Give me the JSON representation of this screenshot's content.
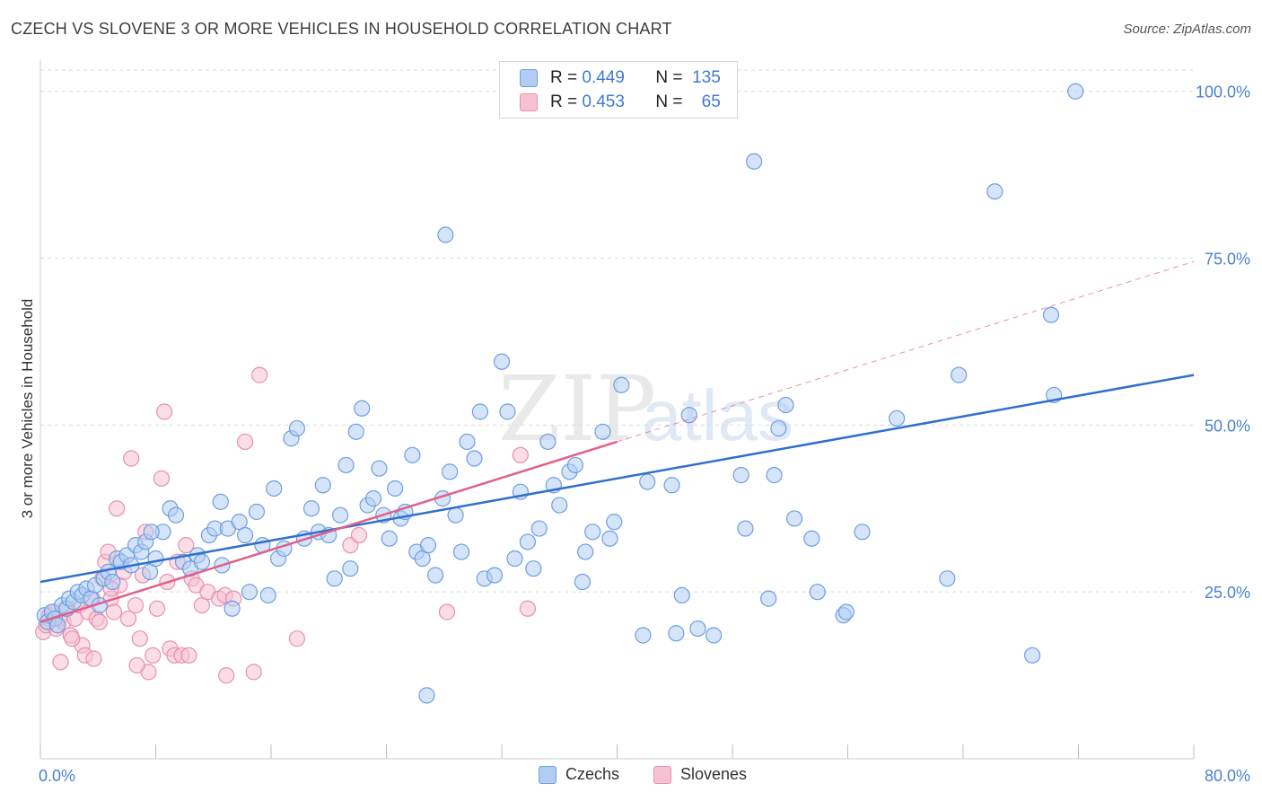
{
  "header": {
    "title": "CZECH VS SLOVENE 3 OR MORE VEHICLES IN HOUSEHOLD CORRELATION CHART",
    "source": "Source: ZipAtlas.com"
  },
  "legend": {
    "czechs": {
      "r_label": "R =",
      "r_value": "0.449",
      "n_label": "N =",
      "n_value": "135"
    },
    "slovenes": {
      "r_label": "R =",
      "r_value": "0.453",
      "n_label": "N =",
      "n_value": "65"
    }
  },
  "watermark": {
    "zip": "ZIP",
    "atlas": "atlas"
  },
  "colors": {
    "czech_fill": "#b3cdf2",
    "czech_stroke": "#6d9fe0",
    "czech_line": "#2f6fd0",
    "slovene_fill": "#f8c1d3",
    "slovene_stroke": "#e88fae",
    "slovene_line": "#e0608a",
    "grid": "#d9d9d9",
    "tick_text": "#4a7fd4"
  },
  "chart_data": {
    "type": "scatter",
    "title": "CZECH VS SLOVENE 3 OR MORE VEHICLES IN HOUSEHOLD CORRELATION CHART",
    "xlabel": "",
    "ylabel": "3 or more Vehicles in Household",
    "xlim": [
      0,
      80
    ],
    "ylim": [
      0,
      104
    ],
    "x_tick_labels": [
      "0.0%",
      "80.0%"
    ],
    "y_ticks": [
      25,
      50,
      75,
      100
    ],
    "y_tick_labels": [
      "25.0%",
      "50.0%",
      "75.0%",
      "100.0%"
    ],
    "grid": true,
    "legend_position": "top-center and bottom",
    "series": [
      {
        "name": "Czechs",
        "trend": {
          "x0": 0,
          "y0": 26.5,
          "x1": 80,
          "y1": 57.5
        },
        "points": [
          [
            0.3,
            21.5
          ],
          [
            0.5,
            20.5
          ],
          [
            0.8,
            22
          ],
          [
            1,
            21
          ],
          [
            1.2,
            20
          ],
          [
            1.5,
            23
          ],
          [
            1.8,
            22.5
          ],
          [
            2,
            24
          ],
          [
            2.3,
            23.5
          ],
          [
            2.6,
            25
          ],
          [
            2.9,
            24.5
          ],
          [
            3.2,
            25.5
          ],
          [
            3.5,
            24
          ],
          [
            3.8,
            26
          ],
          [
            4.1,
            23
          ],
          [
            4.4,
            27
          ],
          [
            4.7,
            28
          ],
          [
            5,
            26.5
          ],
          [
            5.3,
            30
          ],
          [
            5.6,
            29.5
          ],
          [
            6,
            30.5
          ],
          [
            6.3,
            29
          ],
          [
            6.6,
            32
          ],
          [
            7,
            31
          ],
          [
            7.3,
            32.5
          ],
          [
            7.6,
            28
          ],
          [
            8,
            30
          ],
          [
            8.5,
            34
          ],
          [
            9,
            37.5
          ],
          [
            9.4,
            36.5
          ],
          [
            9.9,
            29.5
          ],
          [
            10.4,
            28.5
          ],
          [
            10.9,
            30.5
          ],
          [
            11.2,
            29.5
          ],
          [
            11.7,
            33.5
          ],
          [
            12.1,
            34.5
          ],
          [
            12.6,
            29
          ],
          [
            13,
            34.5
          ],
          [
            13.3,
            22.5
          ],
          [
            13.8,
            35.5
          ],
          [
            14.2,
            33.5
          ],
          [
            14.5,
            25
          ],
          [
            15,
            37
          ],
          [
            15.4,
            32
          ],
          [
            15.8,
            24.5
          ],
          [
            16.2,
            40.5
          ],
          [
            16.5,
            30
          ],
          [
            16.9,
            31.5
          ],
          [
            17.4,
            48
          ],
          [
            17.8,
            49.5
          ],
          [
            18.3,
            33
          ],
          [
            18.8,
            37.5
          ],
          [
            19.3,
            34
          ],
          [
            19.6,
            41
          ],
          [
            20,
            33.5
          ],
          [
            20.4,
            27
          ],
          [
            20.8,
            36.5
          ],
          [
            21.2,
            44
          ],
          [
            21.5,
            28.5
          ],
          [
            21.9,
            49
          ],
          [
            22.3,
            52.5
          ],
          [
            22.7,
            38
          ],
          [
            23.1,
            39
          ],
          [
            23.5,
            43.5
          ],
          [
            23.8,
            36.5
          ],
          [
            24.2,
            33
          ],
          [
            24.6,
            40.5
          ],
          [
            25,
            36
          ],
          [
            25.3,
            37
          ],
          [
            25.8,
            45.5
          ],
          [
            26.1,
            31
          ],
          [
            26.5,
            30
          ],
          [
            26.9,
            32
          ],
          [
            27.4,
            27.5
          ],
          [
            27.9,
            39
          ],
          [
            28.4,
            43
          ],
          [
            28.8,
            36.5
          ],
          [
            29.2,
            31
          ],
          [
            29.6,
            47.5
          ],
          [
            30.1,
            45
          ],
          [
            26.8,
            9.5
          ],
          [
            30.5,
            52
          ],
          [
            30.8,
            27
          ],
          [
            31.5,
            27.5
          ],
          [
            32,
            59.5
          ],
          [
            32.4,
            52
          ],
          [
            32.9,
            30
          ],
          [
            33.3,
            40
          ],
          [
            33.8,
            32.5
          ],
          [
            34.2,
            28.5
          ],
          [
            34.6,
            34.5
          ],
          [
            35.2,
            47.5
          ],
          [
            35.6,
            41
          ],
          [
            36,
            38
          ],
          [
            36.7,
            43
          ],
          [
            37.1,
            44
          ],
          [
            37.6,
            26.5
          ],
          [
            37.8,
            31
          ],
          [
            38.3,
            34
          ],
          [
            39,
            49
          ],
          [
            39.5,
            33
          ],
          [
            39.8,
            35.5
          ],
          [
            40.3,
            56
          ],
          [
            41.8,
            18.5
          ],
          [
            42.1,
            41.5
          ],
          [
            43.8,
            41
          ],
          [
            44.1,
            18.8
          ],
          [
            44.5,
            24.5
          ],
          [
            45,
            51.5
          ],
          [
            45.6,
            19.5
          ],
          [
            46.7,
            18.5
          ],
          [
            48.6,
            42.5
          ],
          [
            48.9,
            34.5
          ],
          [
            49.5,
            89.5
          ],
          [
            50.5,
            24
          ],
          [
            50.9,
            42.5
          ],
          [
            51.2,
            49.5
          ],
          [
            51.7,
            53
          ],
          [
            52.3,
            36
          ],
          [
            53.9,
            25
          ],
          [
            53.5,
            33
          ],
          [
            55.7,
            21.5
          ],
          [
            55.9,
            22
          ],
          [
            57,
            34
          ],
          [
            59.4,
            51
          ],
          [
            62.9,
            27
          ],
          [
            63.7,
            57.5
          ],
          [
            66.2,
            85
          ],
          [
            68.8,
            15.5
          ],
          [
            70.1,
            66.5
          ],
          [
            70.3,
            54.5
          ],
          [
            71.8,
            100
          ],
          [
            28.1,
            78.5
          ],
          [
            7.7,
            34
          ],
          [
            12.5,
            38.5
          ]
        ]
      },
      {
        "name": "Slovenes",
        "trend": {
          "x0": 0,
          "y0": 20.5,
          "x1": 40,
          "y1": 47.5,
          "dash_x1": 80,
          "dash_y1": 74.5
        },
        "points": [
          [
            0.2,
            19
          ],
          [
            0.4,
            20
          ],
          [
            0.6,
            21.5
          ],
          [
            0.9,
            22
          ],
          [
            1.1,
            19.5
          ],
          [
            1.3,
            21
          ],
          [
            1.6,
            20.5
          ],
          [
            1.9,
            22.5
          ],
          [
            2.1,
            18.5
          ],
          [
            2.4,
            21
          ],
          [
            2.7,
            23
          ],
          [
            2.9,
            17
          ],
          [
            3.1,
            15.5
          ],
          [
            3.3,
            22
          ],
          [
            3.6,
            24
          ],
          [
            3.9,
            21
          ],
          [
            4.1,
            20.5
          ],
          [
            4.3,
            27
          ],
          [
            4.5,
            29.5
          ],
          [
            4.7,
            31
          ],
          [
            4.9,
            24
          ],
          [
            5.1,
            22
          ],
          [
            5.3,
            37.5
          ],
          [
            5.5,
            26
          ],
          [
            5.8,
            28
          ],
          [
            6.1,
            21
          ],
          [
            6.3,
            45
          ],
          [
            6.6,
            23
          ],
          [
            6.9,
            18
          ],
          [
            7.1,
            27.5
          ],
          [
            7.3,
            34
          ],
          [
            7.5,
            13
          ],
          [
            7.8,
            15.5
          ],
          [
            8.1,
            22.5
          ],
          [
            8.4,
            42
          ],
          [
            8.6,
            52
          ],
          [
            8.8,
            26.5
          ],
          [
            9,
            16.5
          ],
          [
            9.3,
            15.5
          ],
          [
            9.5,
            29.5
          ],
          [
            9.8,
            15.5
          ],
          [
            10.1,
            32
          ],
          [
            10.5,
            27
          ],
          [
            10.8,
            26
          ],
          [
            11.2,
            23
          ],
          [
            11.6,
            25
          ],
          [
            12.4,
            24
          ],
          [
            12.8,
            24.5
          ],
          [
            13.4,
            24
          ],
          [
            14.2,
            47.5
          ],
          [
            14.8,
            13
          ],
          [
            15.2,
            57.5
          ],
          [
            17.8,
            18
          ],
          [
            21.5,
            32
          ],
          [
            22.1,
            33.5
          ],
          [
            28.2,
            22
          ],
          [
            33.3,
            45.5
          ],
          [
            33.8,
            22.5
          ],
          [
            3.7,
            15
          ],
          [
            2.2,
            18
          ],
          [
            1.4,
            14.5
          ],
          [
            4.9,
            25.5
          ],
          [
            6.7,
            14
          ],
          [
            10.3,
            15.5
          ],
          [
            12.9,
            12.5
          ]
        ]
      }
    ]
  }
}
